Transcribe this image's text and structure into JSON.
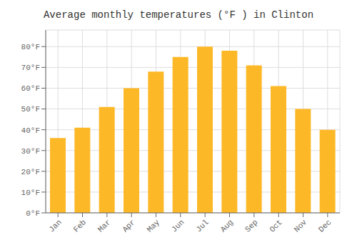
{
  "chart_data": {
    "type": "bar",
    "title": "Average monthly temperatures (°F ) in Clinton",
    "categories": [
      "Jan",
      "Feb",
      "Mar",
      "Apr",
      "May",
      "Jun",
      "Jul",
      "Aug",
      "Sep",
      "Oct",
      "Nov",
      "Dec"
    ],
    "values": [
      36,
      41,
      51,
      60,
      68,
      75,
      80,
      78,
      71,
      61,
      50,
      40
    ],
    "color": "#FDB827",
    "ylim": [
      0,
      88
    ],
    "yticks": [
      {
        "value": 0,
        "label": "0°F"
      },
      {
        "value": 10,
        "label": "10°F"
      },
      {
        "value": 20,
        "label": "20°F"
      },
      {
        "value": 30,
        "label": "30°F"
      },
      {
        "value": 40,
        "label": "40°F"
      },
      {
        "value": 50,
        "label": "50°F"
      },
      {
        "value": 60,
        "label": "60°F"
      },
      {
        "value": 70,
        "label": "70°F"
      },
      {
        "value": 80,
        "label": "80°F"
      }
    ],
    "grid": true
  }
}
